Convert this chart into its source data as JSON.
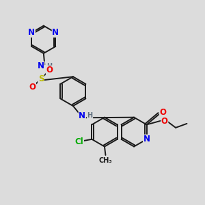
{
  "background_color": "#dcdcdc",
  "bond_color": "#1a1a1a",
  "bond_width": 1.4,
  "atom_colors": {
    "N": "#0000ee",
    "O": "#ee0000",
    "S": "#bbbb00",
    "Cl": "#00aa00",
    "C": "#1a1a1a",
    "H": "#607080"
  },
  "fs": 8.5,
  "fss": 7.0
}
